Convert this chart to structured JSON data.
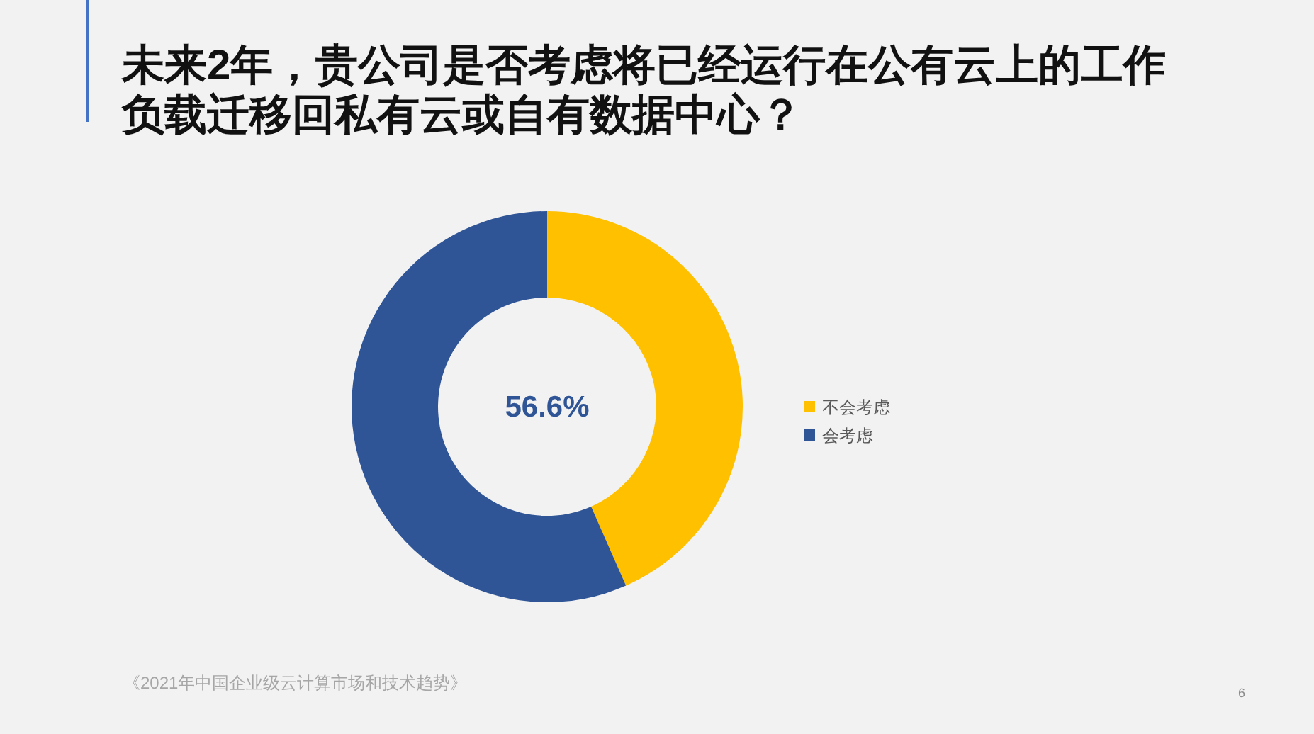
{
  "chart_data": {
    "type": "donut",
    "title": "未来2年，贵公司是否考虑将已经运行在公有云上的工作负载迁移回私有云或自有数据中心？",
    "categories": [
      "不会考虑",
      "会考虑"
    ],
    "values": [
      43.4,
      56.6
    ],
    "colors": [
      "#ffc000",
      "#2f5597"
    ],
    "value_labels": [
      null,
      "56.6%"
    ],
    "legend": "right",
    "annotations": [
      "《2021年中国企业级云计算市场和技术趋势》",
      "6"
    ]
  }
}
